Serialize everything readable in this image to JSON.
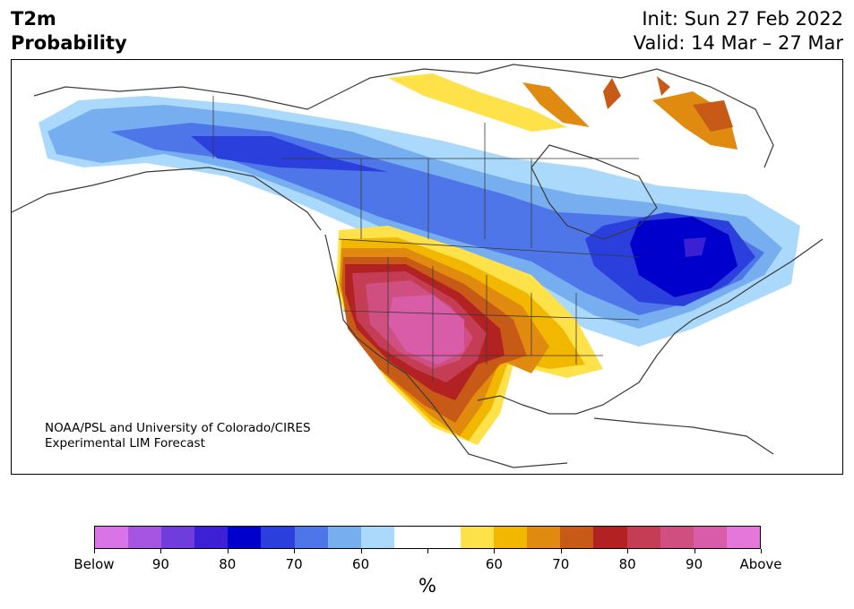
{
  "header": {
    "variable": "T2m",
    "product": "Probability",
    "init": "Init: Sun 27 Feb 2022",
    "valid": "Valid: 14 Mar – 27 Mar"
  },
  "map": {
    "credit_line1": "NOAA/PSL and University of Colorado/CIRES",
    "credit_line2": "Experimental LIM Forecast"
  },
  "colorbar": {
    "unit": "%",
    "tick_labels": [
      "Below",
      "90",
      "80",
      "70",
      "60",
      "",
      "60",
      "70",
      "80",
      "90",
      "Above"
    ],
    "colors": [
      "#d874e6",
      "#a655e3",
      "#6f3ddb",
      "#3b20d4",
      "#0000cc",
      "#2a3fdc",
      "#4f76e8",
      "#77aef0",
      "#aad9fc",
      "#ffffff",
      "#ffffff",
      "#ffe14a",
      "#f2b800",
      "#e08a10",
      "#c85a18",
      "#b22222",
      "#c53d55",
      "#cf5080",
      "#d85ca8",
      "#e477d9"
    ]
  },
  "colors": {
    "cold_1": "#aad9fc",
    "cold_2": "#77aef0",
    "cold_3": "#4f76e8",
    "cold_4": "#2a3fdc",
    "cold_5": "#0000cc",
    "cold_6": "#3b20d4",
    "warm_1": "#ffe14a",
    "warm_2": "#f2b800",
    "warm_3": "#e08a10",
    "warm_4": "#c85a18",
    "warm_5": "#b22222",
    "warm_6": "#c53d55",
    "warm_7": "#cf5080",
    "warm_8": "#d85ca8"
  }
}
